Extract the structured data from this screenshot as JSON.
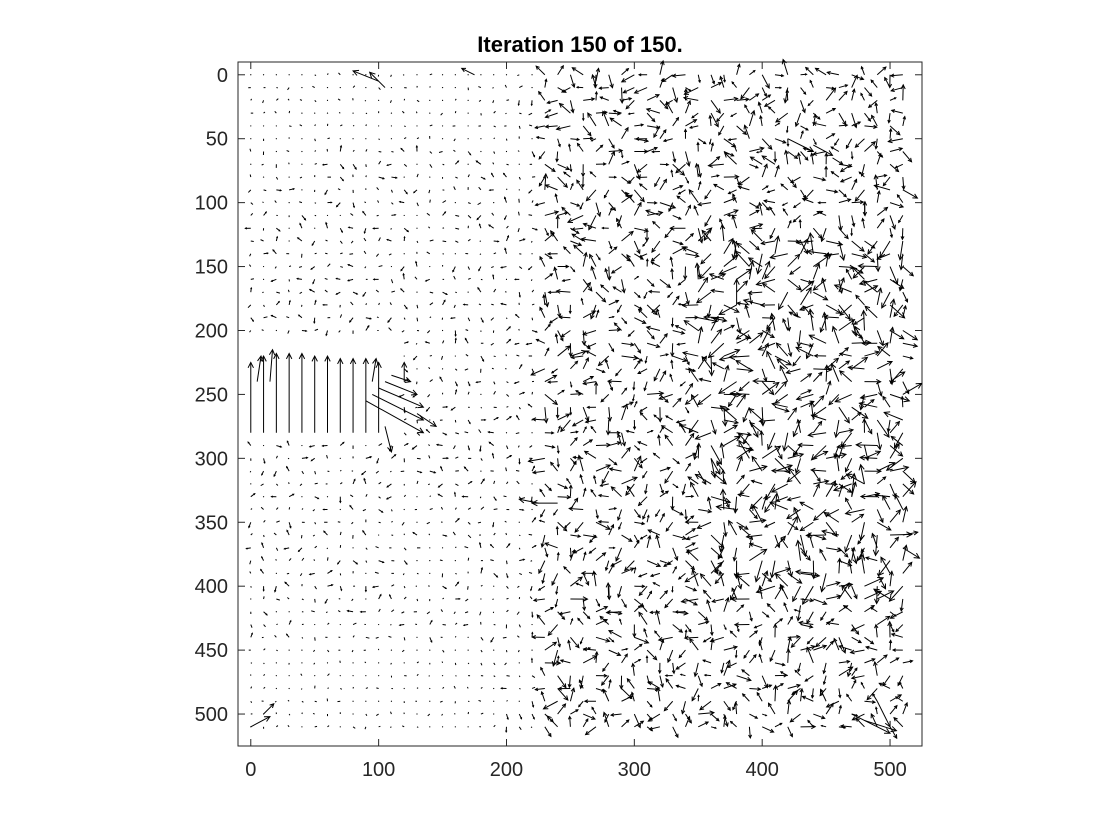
{
  "chart_data": {
    "type": "quiver",
    "title": "Iteration 150 of 150.",
    "xlabel": "",
    "ylabel": "",
    "xlim": [
      -10,
      525
    ],
    "ylim": [
      525,
      -10
    ],
    "y_reversed": true,
    "xticks": [
      0,
      100,
      200,
      300,
      400,
      500
    ],
    "yticks": [
      0,
      50,
      100,
      150,
      200,
      250,
      300,
      350,
      400,
      450,
      500
    ],
    "xtick_labels": [
      "0",
      "100",
      "200",
      "300",
      "400",
      "500"
    ],
    "ytick_labels": [
      "0",
      "50",
      "100",
      "150",
      "200",
      "250",
      "300",
      "350",
      "400",
      "450",
      "500"
    ],
    "grid": false,
    "color": "#000000",
    "vectors": [
      {
        "x": 0,
        "y": 280,
        "u": 0,
        "v": -55
      },
      {
        "x": 10,
        "y": 280,
        "u": 0,
        "v": -60
      },
      {
        "x": 20,
        "y": 280,
        "u": 0,
        "v": -62
      },
      {
        "x": 30,
        "y": 280,
        "u": 0,
        "v": -62
      },
      {
        "x": 40,
        "y": 280,
        "u": 0,
        "v": -62
      },
      {
        "x": 50,
        "y": 280,
        "u": 0,
        "v": -60
      },
      {
        "x": 60,
        "y": 280,
        "u": 0,
        "v": -60
      },
      {
        "x": 70,
        "y": 280,
        "u": 0,
        "v": -58
      },
      {
        "x": 80,
        "y": 280,
        "u": 0,
        "v": -58
      },
      {
        "x": 90,
        "y": 280,
        "u": 0,
        "v": -58
      },
      {
        "x": 100,
        "y": 280,
        "u": 0,
        "v": -55
      },
      {
        "x": 5,
        "y": 240,
        "u": 3,
        "v": -20
      },
      {
        "x": 15,
        "y": 240,
        "u": 2,
        "v": -25
      },
      {
        "x": 95,
        "y": 240,
        "u": 3,
        "v": -18
      },
      {
        "x": 90,
        "y": 255,
        "u": 45,
        "v": 25
      },
      {
        "x": 95,
        "y": 250,
        "u": 40,
        "v": 20
      },
      {
        "x": 100,
        "y": 245,
        "u": 35,
        "v": 15
      },
      {
        "x": 105,
        "y": 240,
        "u": 25,
        "v": 10
      },
      {
        "x": 110,
        "y": 235,
        "u": 15,
        "v": 5
      },
      {
        "x": 120,
        "y": 240,
        "u": 0,
        "v": -15
      },
      {
        "x": 130,
        "y": 265,
        "u": 15,
        "v": 10
      },
      {
        "x": 105,
        "y": 275,
        "u": 5,
        "v": 20
      },
      {
        "x": 225,
        "y": 335,
        "u": -15,
        "v": -3
      },
      {
        "x": 240,
        "y": 335,
        "u": -20,
        "v": 0
      },
      {
        "x": 470,
        "y": 500,
        "u": 30,
        "v": 15
      },
      {
        "x": 480,
        "y": 505,
        "u": 25,
        "v": 8
      },
      {
        "x": 490,
        "y": 490,
        "u": 10,
        "v": 20
      },
      {
        "x": 0,
        "y": 510,
        "u": 15,
        "v": -8
      },
      {
        "x": 10,
        "y": 500,
        "u": 8,
        "v": -8
      },
      {
        "x": 100,
        "y": 5,
        "u": -20,
        "v": -8
      },
      {
        "x": 105,
        "y": 10,
        "u": -12,
        "v": -12
      },
      {
        "x": 175,
        "y": 0,
        "u": -10,
        "v": -5
      },
      {
        "x": 270,
        "y": 5,
        "u": 2,
        "v": -10
      },
      {
        "x": 420,
        "y": 50,
        "u": 20,
        "v": 10
      },
      {
        "x": 440,
        "y": 55,
        "u": 15,
        "v": 8
      },
      {
        "x": 455,
        "y": 65,
        "u": 8,
        "v": 5
      },
      {
        "x": 430,
        "y": 415,
        "u": -2,
        "v": 12
      },
      {
        "x": 380,
        "y": 180,
        "u": 0,
        "v": -20
      },
      {
        "x": 360,
        "y": 300,
        "u": 3,
        "v": 15
      },
      {
        "x": 470,
        "y": 330,
        "u": 2,
        "v": -18
      },
      {
        "x": 480,
        "y": 320,
        "u": -3,
        "v": -15
      }
    ]
  }
}
